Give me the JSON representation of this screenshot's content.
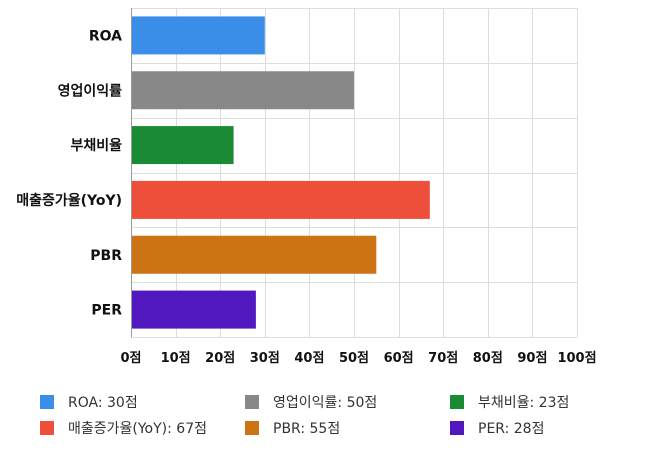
{
  "chart_data": {
    "type": "bar",
    "orientation": "horizontal",
    "categories": [
      "ROA",
      "영업이익률",
      "부채비율",
      "매출증가율(YoY)",
      "PBR",
      "PER"
    ],
    "values": [
      30,
      50,
      23,
      67,
      55,
      28
    ],
    "colors": [
      "#3b8ee8",
      "#888888",
      "#1a8a35",
      "#ee4f3a",
      "#cc7314",
      "#5118bf"
    ],
    "xlim": [
      0,
      100
    ],
    "x_ticks": [
      "0점",
      "10점",
      "20점",
      "30점",
      "40점",
      "50점",
      "60점",
      "70점",
      "80점",
      "90점",
      "100점"
    ],
    "grid": true,
    "legend_position": "bottom",
    "legend": [
      "ROA: 30점",
      "영업이익률: 50점",
      "부채비율: 23점",
      "매출증가율(YoY): 67점",
      "PBR: 55점",
      "PER: 28점"
    ]
  }
}
